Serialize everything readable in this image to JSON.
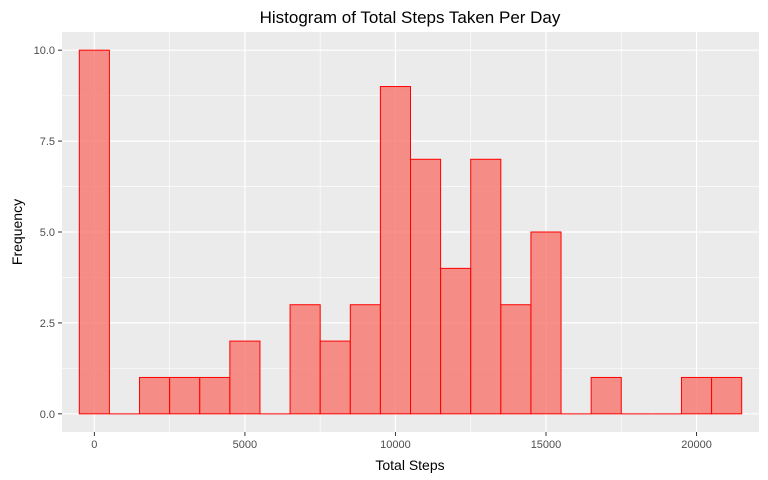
{
  "chart_data": {
    "type": "bar",
    "title": "Histogram of Total Steps Taken Per Day",
    "xlabel": "Total Steps",
    "ylabel": "Frequency",
    "bin_width": 1000,
    "bins": [
      {
        "x": 0,
        "count": 10
      },
      {
        "x": 1000,
        "count": 0
      },
      {
        "x": 2000,
        "count": 1
      },
      {
        "x": 3000,
        "count": 1
      },
      {
        "x": 4000,
        "count": 1
      },
      {
        "x": 5000,
        "count": 2
      },
      {
        "x": 6000,
        "count": 0
      },
      {
        "x": 7000,
        "count": 3
      },
      {
        "x": 8000,
        "count": 2
      },
      {
        "x": 9000,
        "count": 3
      },
      {
        "x": 10000,
        "count": 9
      },
      {
        "x": 11000,
        "count": 7
      },
      {
        "x": 12000,
        "count": 4
      },
      {
        "x": 13000,
        "count": 7
      },
      {
        "x": 14000,
        "count": 3
      },
      {
        "x": 15000,
        "count": 5
      },
      {
        "x": 16000,
        "count": 0
      },
      {
        "x": 17000,
        "count": 1
      },
      {
        "x": 18000,
        "count": 0
      },
      {
        "x": 19000,
        "count": 0
      },
      {
        "x": 20000,
        "count": 1
      },
      {
        "x": 21000,
        "count": 1
      }
    ],
    "x_ticks": [
      0,
      5000,
      10000,
      15000,
      20000
    ],
    "x_tick_labels": [
      "0",
      "5000",
      "10000",
      "15000",
      "20000"
    ],
    "y_ticks": [
      0,
      2.5,
      5,
      7.5,
      10
    ],
    "y_tick_labels": [
      "0.0",
      "2.5",
      "5.0",
      "7.5",
      "10.0"
    ],
    "xlim": [
      -1075,
      22075
    ],
    "ylim": [
      -0.5,
      10.5
    ],
    "grid": true,
    "colors": {
      "panel_background": "#ebebeb",
      "grid": "#ffffff",
      "bar_fill": "#f8766d",
      "bar_fill_opacity": 0.8,
      "bar_stroke": "#ff0000"
    }
  }
}
